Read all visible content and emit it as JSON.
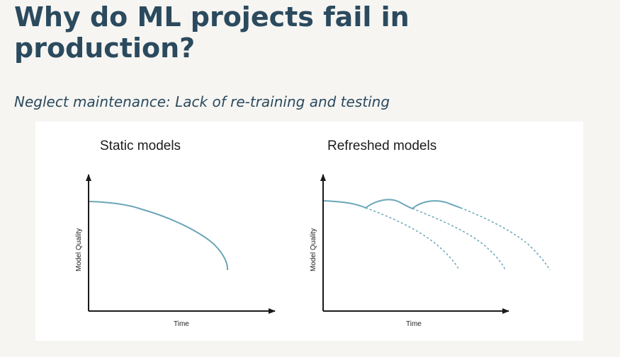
{
  "slide": {
    "title_line1": "Why do ML projects fail in",
    "title_line2": "production?",
    "subtitle": "Neglect maintenance: Lack of re-training and testing"
  },
  "figure": {
    "left_panel": {
      "title": "Static models",
      "xlabel": "Time",
      "ylabel": "Model Quality"
    },
    "right_panel": {
      "title": "Refreshed models",
      "xlabel": "Time",
      "ylabel": "Model Quality"
    }
  },
  "colors": {
    "title": "#2b4a5e",
    "curve": "#6aa6b8",
    "axis": "#1a1a1a",
    "background": "#f6f5f2"
  }
}
